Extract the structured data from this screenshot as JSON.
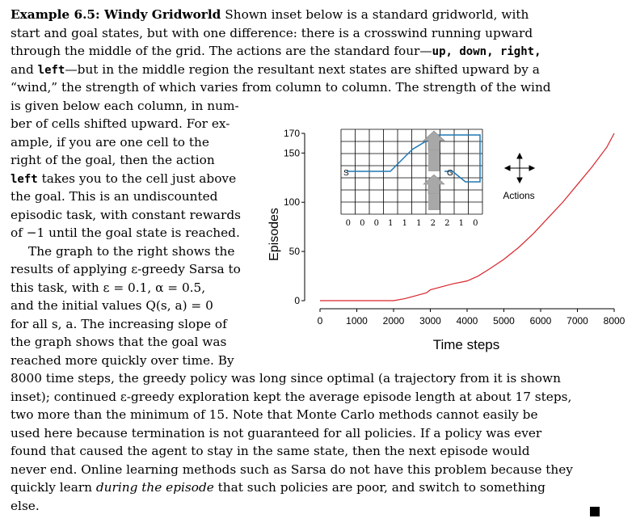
{
  "example_heading": "Example 6.5: Windy Gridworld",
  "lines": {
    "l1": "Shown inset below is a standard gridworld, with",
    "l2": "start and goal states, but with one difference: there is a crosswind running upward",
    "l3": "through the middle of the grid. The actions are the standard four—",
    "l3_actions": "up, down, right,",
    "l4a": "and ",
    "l4_left": "left",
    "l4b": "—but in the middle region the resultant next states are shifted upward by a",
    "l5": "“wind,” the strength of which varies from column to column. The strength of the wind",
    "l6": "is given below each column, in num-",
    "l7": "ber of cells shifted upward.  For ex-",
    "l8": "ample, if you are one cell to the",
    "l9": "right of the goal, then the action",
    "l10_left": "left",
    "l10b": " takes you to the cell just above",
    "l11": "the goal.  This is an undiscounted",
    "l12": "episodic task, with constant rewards",
    "l13": "of −1 until the goal state is reached.",
    "l14": "The graph to the right shows the",
    "l15": "results of applying ε-greedy Sarsa to",
    "l16": "this task, with ε = 0.1, α = 0.5,",
    "l17": "and the initial values Q(s, a) = 0",
    "l18": "for all s, a.  The increasing slope of",
    "l19": "the graph shows that the goal was",
    "l20": "reached more quickly over time.  By",
    "l21": "8000 time steps, the greedy policy was long since optimal (a trajectory from it is shown",
    "l22": "inset); continued ε-greedy exploration kept the average episode length at about 17 steps,",
    "l23": "two more than the minimum of 15. Note that Monte Carlo methods cannot easily be",
    "l24": "used here because termination is not guaranteed for all policies. If a policy was ever",
    "l25": "found that caused the agent to stay in the same state, then the next episode would",
    "l26": "never end. Online learning methods such as Sarsa do not have this problem because they",
    "l27a": "quickly learn ",
    "l27_em": "during the episode",
    "l27b": " that such policies are poor, and switch to something",
    "l28": "else."
  },
  "inset": {
    "start_label": "S",
    "goal_label": "G",
    "wind_strengths": [
      "0",
      "0",
      "0",
      "1",
      "1",
      "1",
      "2",
      "2",
      "1",
      "0"
    ],
    "actions_label": "Actions"
  },
  "chart_data": {
    "type": "line",
    "xlabel": "Time steps",
    "ylabel": "Episodes",
    "x_ticks": [
      0,
      1000,
      2000,
      3000,
      4000,
      5000,
      6000,
      7000,
      8000
    ],
    "y_ticks": [
      0,
      50,
      100,
      150,
      170
    ],
    "xlim": [
      0,
      8000
    ],
    "ylim": [
      0,
      170
    ],
    "series": [
      {
        "color": "#d9252c",
        "x": [
          0,
          500,
          1000,
          1500,
          2000,
          2300,
          2600,
          2900,
          3000,
          3300,
          3600,
          4000,
          4300,
          4600,
          5000,
          5400,
          5800,
          6200,
          6600,
          7000,
          7400,
          7800,
          8000
        ],
        "y": [
          0,
          0,
          0,
          0,
          0,
          2,
          5,
          8,
          11,
          14,
          17,
          20,
          25,
          32,
          42,
          54,
          68,
          84,
          100,
          118,
          136,
          156,
          170
        ]
      }
    ]
  }
}
